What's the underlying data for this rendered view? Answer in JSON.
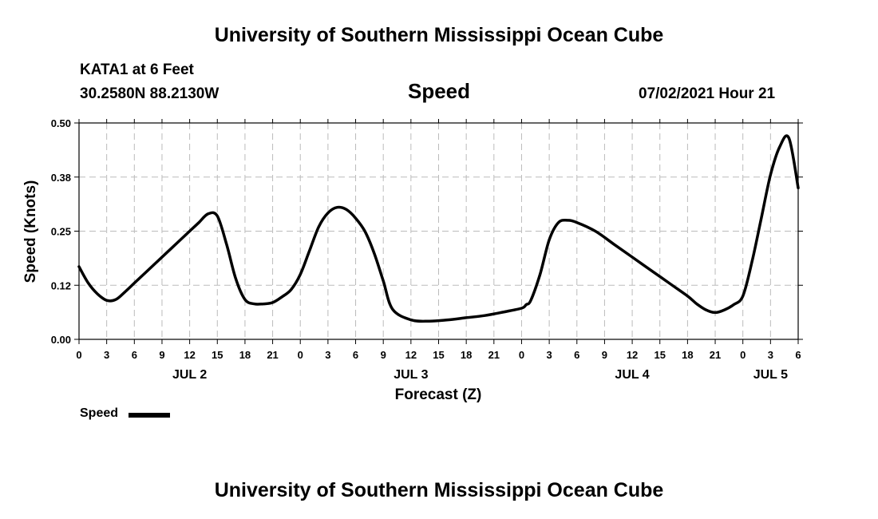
{
  "page": {
    "header_title": "University of Southern Mississippi Ocean Cube",
    "footer_title": "University of Southern Mississippi Ocean Cube",
    "station": "KATA1 at 6 Feet",
    "coordinates": "30.2580N  88.2130W",
    "timestamp": "07/02/2021 Hour 21"
  },
  "chart_data": {
    "type": "line",
    "title": "Speed",
    "xlabel": "Forecast (Z)",
    "ylabel": "Speed (Knots)",
    "ylim": [
      0,
      0.5
    ],
    "yticks": [
      "0.00",
      "0.12",
      "0.25",
      "0.38",
      "0.50"
    ],
    "xlim": [
      0,
      78
    ],
    "xtick_labels": [
      "0",
      "3",
      "6",
      "9",
      "12",
      "15",
      "18",
      "21",
      "0",
      "3",
      "6",
      "9",
      "12",
      "15",
      "18",
      "21",
      "0",
      "3",
      "6",
      "9",
      "12",
      "15",
      "18",
      "21",
      "0",
      "3",
      "6"
    ],
    "day_labels": [
      {
        "label": "JUL 2",
        "hour": 12
      },
      {
        "label": "JUL 3",
        "hour": 36
      },
      {
        "label": "JUL 4",
        "hour": 60
      },
      {
        "label": "JUL 5",
        "hour": 75
      }
    ],
    "grid": true,
    "legend": [
      {
        "name": "Speed",
        "color": "#000000"
      }
    ],
    "series": [
      {
        "name": "Speed",
        "color": "#000000",
        "x": [
          0,
          1,
          2,
          3,
          4,
          5,
          6,
          8,
          10,
          12,
          13,
          14,
          15,
          16,
          17,
          18,
          19,
          20,
          21,
          22,
          23,
          24,
          25,
          26,
          27,
          28,
          29,
          30,
          31,
          32,
          33,
          34,
          36,
          38,
          40,
          42,
          44,
          46,
          48,
          48.5,
          49,
          50,
          51,
          52,
          53,
          54,
          56,
          58,
          60,
          62,
          64,
          66,
          67,
          68,
          69,
          70,
          71,
          72,
          73,
          74,
          75,
          76,
          77,
          78
        ],
        "values": [
          0.168,
          0.13,
          0.105,
          0.09,
          0.092,
          0.11,
          0.13,
          0.17,
          0.21,
          0.25,
          0.27,
          0.29,
          0.285,
          0.22,
          0.14,
          0.092,
          0.082,
          0.082,
          0.085,
          0.098,
          0.115,
          0.15,
          0.205,
          0.26,
          0.292,
          0.305,
          0.3,
          0.28,
          0.25,
          0.2,
          0.135,
          0.07,
          0.045,
          0.042,
          0.045,
          0.05,
          0.055,
          0.063,
          0.072,
          0.08,
          0.09,
          0.15,
          0.23,
          0.27,
          0.275,
          0.27,
          0.25,
          0.22,
          0.19,
          0.16,
          0.13,
          0.1,
          0.082,
          0.068,
          0.062,
          0.068,
          0.08,
          0.1,
          0.18,
          0.28,
          0.38,
          0.445,
          0.465,
          0.35
        ]
      }
    ]
  }
}
